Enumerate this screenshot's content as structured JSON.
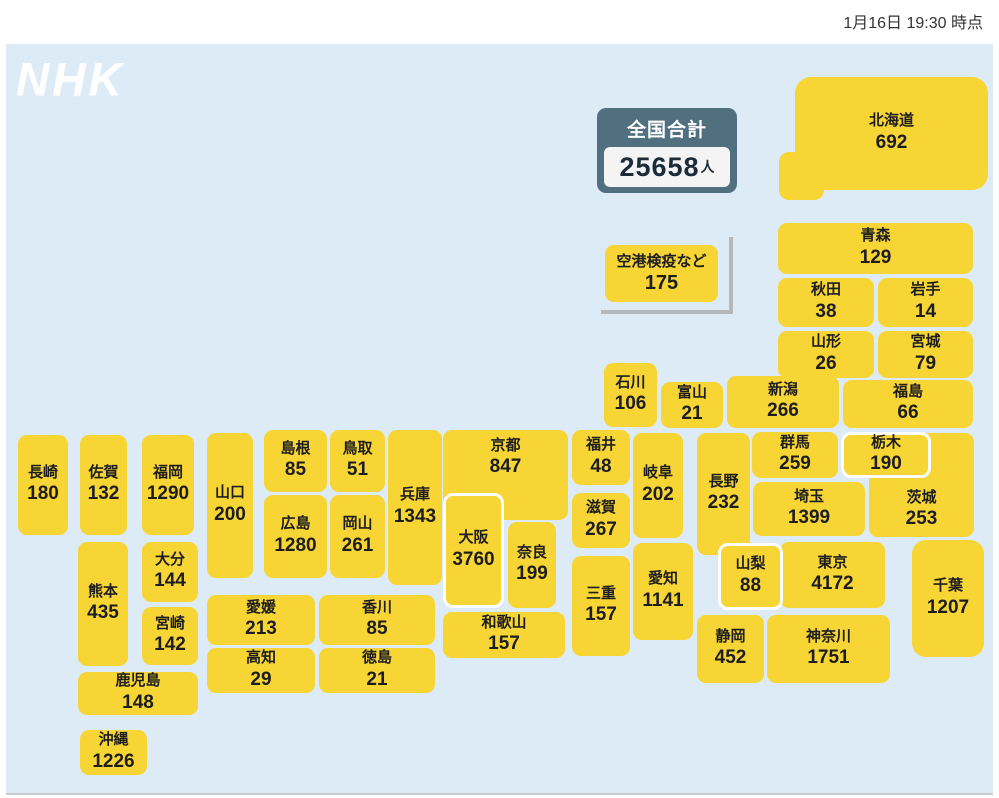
{
  "header": {
    "timestamp": "1月16日 19:30 時点"
  },
  "logo": {
    "text": "NHK"
  },
  "national_total": {
    "label": "全国合計",
    "value": "25658",
    "unit": "人"
  },
  "quarantine": {
    "label": "空港検疫など",
    "value": "175"
  },
  "colors": {
    "prefecture_box": "#f7d535",
    "panel_bg": "#dcebf6",
    "total_box": "#50707f",
    "total_value": "#1c2b39",
    "text": "#1d1d1d",
    "bracket": "#b5b8bb",
    "date_text": "#333333",
    "logo": "#ffffff"
  },
  "prefectures": [
    {
      "id": "hokkaido",
      "name": "北海道",
      "value": "692"
    },
    {
      "id": "aomori",
      "name": "青森",
      "value": "129"
    },
    {
      "id": "akita",
      "name": "秋田",
      "value": "38"
    },
    {
      "id": "iwate",
      "name": "岩手",
      "value": "14"
    },
    {
      "id": "yamagata",
      "name": "山形",
      "value": "26"
    },
    {
      "id": "miyagi",
      "name": "宮城",
      "value": "79"
    },
    {
      "id": "niigata",
      "name": "新潟",
      "value": "266"
    },
    {
      "id": "fukushima",
      "name": "福島",
      "value": "66"
    },
    {
      "id": "toyama",
      "name": "富山",
      "value": "21"
    },
    {
      "id": "ishikawa",
      "name": "石川",
      "value": "106"
    },
    {
      "id": "fukui",
      "name": "福井",
      "value": "48"
    },
    {
      "id": "gunma",
      "name": "群馬",
      "value": "259"
    },
    {
      "id": "tochigi",
      "name": "栃木",
      "value": "190"
    },
    {
      "id": "ibaraki",
      "name": "茨城",
      "value": "253"
    },
    {
      "id": "saitama",
      "name": "埼玉",
      "value": "1399"
    },
    {
      "id": "chiba",
      "name": "千葉",
      "value": "1207"
    },
    {
      "id": "tokyo",
      "name": "東京",
      "value": "4172"
    },
    {
      "id": "kanagawa",
      "name": "神奈川",
      "value": "1751"
    },
    {
      "id": "yamanashi",
      "name": "山梨",
      "value": "88"
    },
    {
      "id": "nagano",
      "name": "長野",
      "value": "232"
    },
    {
      "id": "gifu",
      "name": "岐阜",
      "value": "202"
    },
    {
      "id": "shizuoka",
      "name": "静岡",
      "value": "452"
    },
    {
      "id": "aichi",
      "name": "愛知",
      "value": "1141"
    },
    {
      "id": "mie",
      "name": "三重",
      "value": "157"
    },
    {
      "id": "shiga",
      "name": "滋賀",
      "value": "267"
    },
    {
      "id": "kyoto",
      "name": "京都",
      "value": "847"
    },
    {
      "id": "osaka",
      "name": "大阪",
      "value": "3760"
    },
    {
      "id": "hyogo",
      "name": "兵庫",
      "value": "1343"
    },
    {
      "id": "nara",
      "name": "奈良",
      "value": "199"
    },
    {
      "id": "wakayama",
      "name": "和歌山",
      "value": "157"
    },
    {
      "id": "tottori",
      "name": "鳥取",
      "value": "51"
    },
    {
      "id": "shimane",
      "name": "島根",
      "value": "85"
    },
    {
      "id": "okayama",
      "name": "岡山",
      "value": "261"
    },
    {
      "id": "hiroshima",
      "name": "広島",
      "value": "1280"
    },
    {
      "id": "yamaguchi",
      "name": "山口",
      "value": "200"
    },
    {
      "id": "tokushima",
      "name": "徳島",
      "value": "21"
    },
    {
      "id": "kagawa",
      "name": "香川",
      "value": "85"
    },
    {
      "id": "ehime",
      "name": "愛媛",
      "value": "213"
    },
    {
      "id": "kochi",
      "name": "高知",
      "value": "29"
    },
    {
      "id": "fukuoka",
      "name": "福岡",
      "value": "1290"
    },
    {
      "id": "saga",
      "name": "佐賀",
      "value": "132"
    },
    {
      "id": "nagasaki",
      "name": "長崎",
      "value": "180"
    },
    {
      "id": "kumamoto",
      "name": "熊本",
      "value": "435"
    },
    {
      "id": "oita",
      "name": "大分",
      "value": "144"
    },
    {
      "id": "miyazaki",
      "name": "宮崎",
      "value": "142"
    },
    {
      "id": "kagoshima",
      "name": "鹿児島",
      "value": "148"
    },
    {
      "id": "okinawa",
      "name": "沖縄",
      "value": "1226"
    }
  ]
}
